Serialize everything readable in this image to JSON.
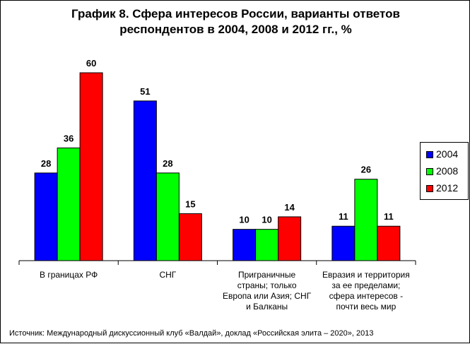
{
  "chart_data": {
    "type": "bar",
    "title": "График 8. Сфера интересов России, варианты ответов респондентов в 2004, 2008 и 2012 гг., %",
    "title_lines": [
      "График 8. Сфера интересов России, варианты ответов",
      "респондентов в 2004, 2008 и 2012 гг., %"
    ],
    "categories": [
      [
        "В границах РФ"
      ],
      [
        "СНГ"
      ],
      [
        "Приграничные",
        "страны; только",
        "Европа или Азия; СНГ",
        "и Балканы"
      ],
      [
        "Евразия и территория",
        "за ее пределами;",
        "сфера интересов -",
        "почти весь мир"
      ]
    ],
    "series": [
      {
        "name": "2004",
        "color": "#0000ff",
        "values": [
          28,
          51,
          10,
          11
        ]
      },
      {
        "name": "2008",
        "color": "#00ff00",
        "values": [
          36,
          28,
          10,
          26
        ]
      },
      {
        "name": "2012",
        "color": "#ff0000",
        "values": [
          60,
          15,
          14,
          11
        ]
      }
    ],
    "ylim": [
      0,
      60
    ],
    "grid": false,
    "legend_position": "right",
    "xlabel": "",
    "ylabel": ""
  },
  "source": "Источник: Международный дискуссионный клуб «Валдай», доклад «Российская элита – 2020», 2013"
}
